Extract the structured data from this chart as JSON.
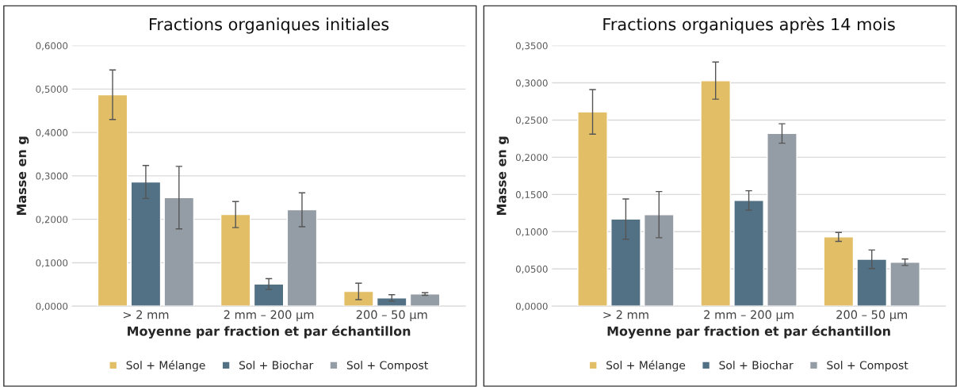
{
  "chart_data": [
    {
      "type": "bar",
      "title": "Fractions organiques initiales",
      "xlabel": "Moyenne par fraction et par échantillon",
      "ylabel": "Masse en g",
      "categories": [
        "> 2 mm",
        "2 mm – 200 µm",
        "200 – 50 µm"
      ],
      "series": [
        {
          "name": "Sol + Mélange",
          "color": "#e2bf67",
          "values": [
            0.487,
            0.211,
            0.034
          ],
          "errors": [
            0.057,
            0.03,
            0.019
          ]
        },
        {
          "name": "Sol + Biochar",
          "color": "#527185",
          "values": [
            0.286,
            0.051,
            0.019
          ],
          "errors": [
            0.038,
            0.0125,
            0.0075
          ]
        },
        {
          "name": "Sol + Compost",
          "color": "#949ca5",
          "values": [
            0.25,
            0.222,
            0.028
          ],
          "errors": [
            0.072,
            0.039,
            0.003
          ]
        }
      ],
      "ylim": [
        0,
        0.6
      ],
      "yticks": [
        {
          "value": 0,
          "label": "0,0000"
        },
        {
          "value": 0.1,
          "label": "0,1000"
        },
        {
          "value": 0.2,
          "label": "0,2000"
        },
        {
          "value": 0.3,
          "label": "0,3000"
        },
        {
          "value": 0.4,
          "label": "0,4000"
        },
        {
          "value": 0.5,
          "label": "0,5000"
        },
        {
          "value": 0.6,
          "label": "0,6000"
        }
      ],
      "grid": "y",
      "legend": "bottom"
    },
    {
      "type": "bar",
      "title": "Fractions organiques après 14 mois",
      "xlabel": "Moyenne par fraction et par échantillon",
      "ylabel": "Masse en g",
      "categories": [
        "> 2 mm",
        "2 mm – 200 µm",
        "200 – 50 µm"
      ],
      "series": [
        {
          "name": "Sol + Mélange",
          "color": "#e2bf67",
          "values": [
            0.261,
            0.303,
            0.093
          ],
          "errors": [
            0.03,
            0.025,
            0.006
          ]
        },
        {
          "name": "Sol + Biochar",
          "color": "#527185",
          "values": [
            0.117,
            0.142,
            0.063
          ],
          "errors": [
            0.027,
            0.013,
            0.0125
          ]
        },
        {
          "name": "Sol + Compost",
          "color": "#949ca5",
          "values": [
            0.123,
            0.232,
            0.059
          ],
          "errors": [
            0.031,
            0.013,
            0.0043
          ]
        }
      ],
      "ylim": [
        0,
        0.35
      ],
      "yticks": [
        {
          "value": 0,
          "label": "0,0000"
        },
        {
          "value": 0.05,
          "label": "0,0500"
        },
        {
          "value": 0.1,
          "label": "0,1000"
        },
        {
          "value": 0.15,
          "label": "0,1500"
        },
        {
          "value": 0.2,
          "label": "0,2000"
        },
        {
          "value": 0.25,
          "label": "0,2500"
        },
        {
          "value": 0.3,
          "label": "0,3000"
        },
        {
          "value": 0.35,
          "label": "0,3500"
        }
      ],
      "grid": "y",
      "legend": "bottom"
    }
  ]
}
